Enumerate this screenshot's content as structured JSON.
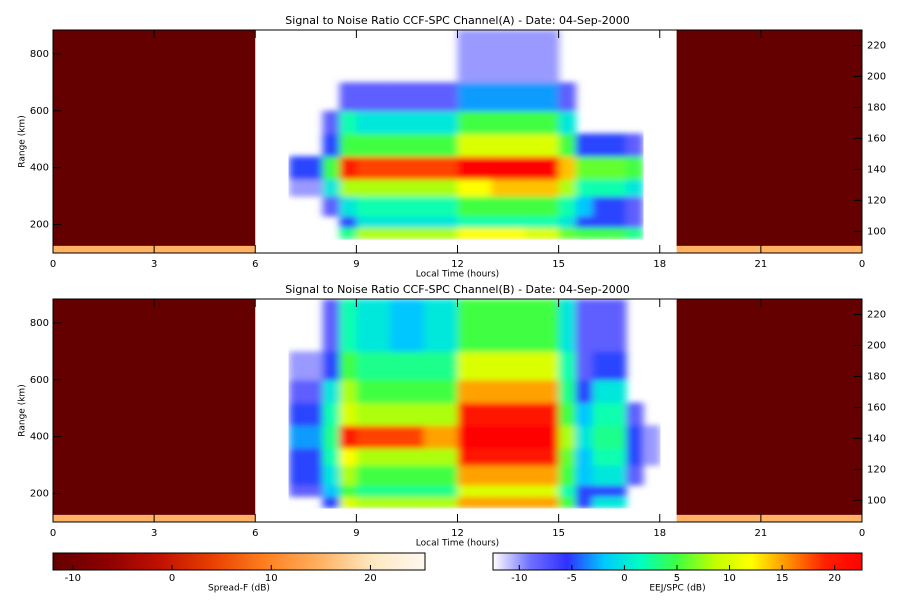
{
  "chart_data": [
    {
      "type": "heatmap",
      "title": "Signal to Noise Ratio CCF-SPC Channel(A) - Date: 04-Sep-2000",
      "x_label": "Local Time (hours)",
      "y_label": "Range (km)",
      "xlim": [
        0,
        24
      ],
      "xticks": [
        0,
        3,
        6,
        9,
        12,
        15,
        18,
        21,
        {
          "value": 24,
          "label": "0"
        }
      ],
      "ylim": [
        100,
        884
      ],
      "yticks": [
        200,
        400,
        600,
        800
      ],
      "y2lim": [
        86,
        230
      ],
      "y2ticks": [
        100,
        120,
        140,
        160,
        180,
        200,
        220
      ],
      "day": {
        "time_edges": [
          7,
          8,
          8.5,
          9,
          10,
          11,
          12,
          13,
          14,
          15,
          15.5,
          16,
          17,
          17.5,
          18
        ],
        "range_edges": [
          100,
          150,
          190,
          230,
          300,
          360,
          440,
          520,
          600,
          700,
          884
        ],
        "values": [
          [
            null,
            null,
            null,
            null,
            null,
            null,
            null,
            null,
            null,
            null,
            null,
            null,
            null,
            null
          ],
          [
            null,
            null,
            3,
            8,
            8,
            8,
            12,
            12,
            10,
            6,
            5,
            5,
            3,
            null
          ],
          [
            null,
            null,
            -5,
            0,
            0,
            0,
            2,
            2,
            2,
            0,
            -5,
            -5,
            -8,
            null
          ],
          [
            null,
            -8,
            0,
            2,
            2,
            2,
            5,
            5,
            5,
            2,
            -2,
            -5,
            -8,
            null
          ],
          [
            -10,
            0,
            8,
            8,
            8,
            8,
            12,
            14,
            14,
            8,
            2,
            2,
            0,
            null
          ],
          [
            -5,
            5,
            20,
            18,
            18,
            18,
            22,
            22,
            22,
            14,
            6,
            6,
            5,
            null
          ],
          [
            null,
            -5,
            5,
            5,
            5,
            5,
            10,
            10,
            10,
            5,
            -5,
            -5,
            -8,
            null
          ],
          [
            null,
            -8,
            2,
            0,
            0,
            0,
            5,
            5,
            5,
            0,
            null,
            null,
            null,
            null
          ],
          [
            null,
            null,
            -8,
            -8,
            -8,
            -8,
            -3,
            -3,
            -3,
            -8,
            null,
            null,
            null,
            null
          ],
          [
            null,
            null,
            null,
            null,
            null,
            null,
            -10,
            -10,
            -10,
            null,
            null,
            null,
            null,
            null
          ]
        ]
      },
      "night": [
        {
          "time_range": [
            0,
            6
          ],
          "range_edges": [
            100,
            125,
            884
          ],
          "values": [
            15,
            -12
          ]
        },
        {
          "time_range": [
            18.5,
            24
          ],
          "range_edges": [
            100,
            125,
            884
          ],
          "values": [
            15,
            -12
          ]
        }
      ]
    },
    {
      "type": "heatmap",
      "title": "Signal to Noise Ratio CCF-SPC Channel(B) - Date: 04-Sep-2000",
      "x_label": "Local Time (hours)",
      "y_label": "Range (km)",
      "xlim": [
        0,
        24
      ],
      "xticks": [
        0,
        3,
        6,
        9,
        12,
        15,
        18,
        21,
        {
          "value": 24,
          "label": "0"
        }
      ],
      "ylim": [
        100,
        884
      ],
      "yticks": [
        200,
        400,
        600,
        800
      ],
      "y2lim": [
        86,
        230
      ],
      "y2ticks": [
        100,
        120,
        140,
        160,
        180,
        200,
        220
      ],
      "day": {
        "time_edges": [
          7,
          8,
          8.5,
          9,
          10,
          11,
          12,
          13,
          14,
          15,
          15.5,
          16,
          17,
          17.5,
          18
        ],
        "range_edges": [
          100,
          150,
          190,
          230,
          300,
          360,
          440,
          520,
          600,
          700,
          884
        ],
        "values": [
          [
            null,
            null,
            null,
            null,
            null,
            null,
            null,
            null,
            null,
            null,
            null,
            null,
            null,
            null
          ],
          [
            null,
            -5,
            10,
            8,
            8,
            8,
            15,
            15,
            15,
            5,
            -5,
            0,
            null,
            null
          ],
          [
            -8,
            -2,
            5,
            3,
            3,
            3,
            10,
            10,
            10,
            2,
            -5,
            -5,
            null,
            null
          ],
          [
            -5,
            0,
            8,
            5,
            5,
            5,
            15,
            15,
            15,
            5,
            -2,
            0,
            -8,
            null
          ],
          [
            -5,
            2,
            12,
            8,
            8,
            8,
            20,
            20,
            20,
            6,
            -2,
            2,
            -5,
            -10
          ],
          [
            -3,
            3,
            20,
            18,
            18,
            15,
            22,
            22,
            22,
            8,
            0,
            3,
            -5,
            -10
          ],
          [
            -5,
            2,
            10,
            8,
            8,
            8,
            20,
            20,
            20,
            5,
            -2,
            2,
            -8,
            null
          ],
          [
            -8,
            0,
            8,
            5,
            5,
            5,
            15,
            15,
            15,
            3,
            -5,
            0,
            null,
            null
          ],
          [
            -10,
            -5,
            5,
            3,
            3,
            3,
            10,
            10,
            10,
            2,
            -8,
            -5,
            null,
            null
          ],
          [
            null,
            -8,
            2,
            0,
            -2,
            0,
            5,
            5,
            5,
            0,
            -8,
            -8,
            null,
            null
          ]
        ]
      },
      "night": [
        {
          "time_range": [
            0,
            6
          ],
          "range_edges": [
            100,
            125,
            884
          ],
          "values": [
            15,
            -12
          ]
        },
        {
          "time_range": [
            18.5,
            24
          ],
          "range_edges": [
            100,
            125,
            884
          ],
          "values": [
            15,
            -12
          ]
        }
      ]
    }
  ],
  "colorbars": [
    {
      "label": "Spread-F (dB)",
      "clim": [
        -12,
        25.5
      ],
      "ticks": [
        -10,
        0,
        10,
        20
      ],
      "colors": [
        "#640000",
        "#8c0000",
        "#c01000",
        "#e84000",
        "#ff8020",
        "#ffb060",
        "#ffe8c0",
        "#fff8f0"
      ]
    },
    {
      "label": "EEJ/SPC (dB)",
      "clim": [
        -12.5,
        22.6
      ],
      "ticks": [
        -10,
        -5,
        0,
        5,
        10,
        15,
        20
      ],
      "colors": [
        "#ffffff",
        "#7070ff",
        "#3030ff",
        "#00c8ff",
        "#00ffc0",
        "#40ff40",
        "#c0ff00",
        "#ffff00",
        "#ff9000",
        "#ff2000",
        "#ff0000"
      ]
    }
  ]
}
